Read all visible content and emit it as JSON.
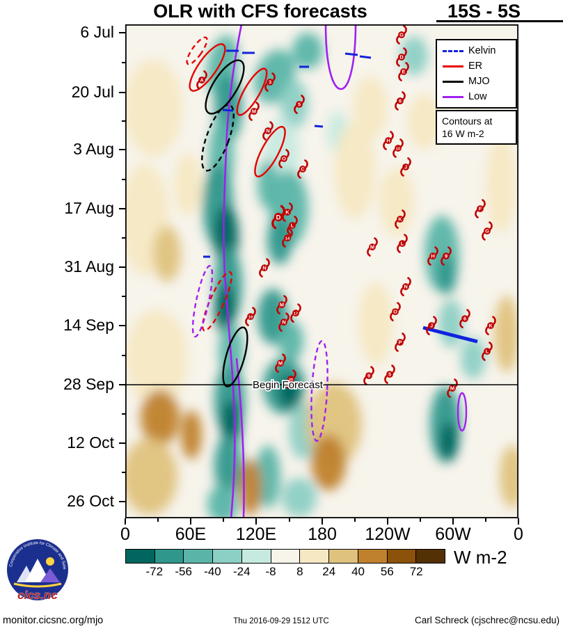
{
  "header": {
    "title": "OLR with CFS forecasts",
    "latitude_band": "15S - 5S"
  },
  "legend": {
    "items": [
      {
        "label": "Kelvin",
        "color": "#1122dd",
        "style": "dashed"
      },
      {
        "label": "ER",
        "color": "#e60000",
        "style": "solid"
      },
      {
        "label": "MJO",
        "color": "#000000",
        "style": "solid"
      },
      {
        "label": "Low",
        "color": "#a020f0",
        "style": "solid"
      }
    ],
    "note_line1": "Contours at",
    "note_line2": "16 W m-2"
  },
  "chart_data": {
    "type": "heatmap",
    "subtype": "hovmoller-time-longitude",
    "title": "OLR with CFS forecasts",
    "latitude_band": "15S - 5S",
    "field": "OLR anomalies (shaded), wave contours at 16 W m-2",
    "plot_bg": "#f7f4ec",
    "storm_color": "#c00000",
    "x_ticks": [
      [
        "0",
        0
      ],
      [
        "60E",
        94
      ],
      [
        "120E",
        188
      ],
      [
        "180",
        283
      ],
      [
        "120W",
        377
      ],
      [
        "60W",
        471
      ],
      [
        "0",
        565
      ]
    ],
    "y_ticks": [
      [
        "6 Jul",
        12
      ],
      [
        "20 Jul",
        98
      ],
      [
        "3 Aug",
        180
      ],
      [
        "17 Aug",
        265
      ],
      [
        "31 Aug",
        349
      ],
      [
        "14 Sep",
        433
      ],
      [
        "28 Sep",
        518
      ],
      [
        "12 Oct",
        602
      ],
      [
        "26 Oct",
        686
      ]
    ],
    "begin_forecast": {
      "label": "Begin Forecast",
      "y": 518
    },
    "colorbar": {
      "units": "W m-2",
      "tick_labels": [
        "-72",
        "-56",
        "-40",
        "-24",
        "-8",
        "8",
        "24",
        "40",
        "56",
        "72"
      ],
      "colors": [
        "#01665e",
        "#2f978c",
        "#5ab4a8",
        "#8ccfc4",
        "#c7eae0",
        "#f7f4ea",
        "#f6e8c3",
        "#dfc27d",
        "#bf812d",
        "#8c510a",
        "#543005"
      ]
    },
    "low_tracks": [
      "M167,0 C155,60 147,120 145,180 C142,250 140,300 143,360 C147,420 152,470 155,520 C158,580 159,630 152,710",
      "M160,480 C168,560 172,640 170,710",
      "M288,0 C288,60 298,93 310,93 C322,93 331,55 331,0"
    ],
    "wave_ellipses": [
      [
        118,
        62,
        13,
        40,
        35,
        "ER",
        0
      ],
      [
        182,
        97,
        11,
        38,
        30,
        "ER",
        0
      ],
      [
        208,
        183,
        12,
        40,
        28,
        "ER",
        0
      ],
      [
        103,
        38,
        7,
        23,
        35,
        "ER",
        1
      ],
      [
        132,
        398,
        10,
        46,
        24,
        "ER",
        1
      ],
      [
        143,
        90,
        17,
        44,
        32,
        "MJO",
        0
      ],
      [
        158,
        478,
        13,
        44,
        16,
        "MJO",
        0
      ],
      [
        133,
        163,
        16,
        50,
        20,
        "MJO",
        1
      ],
      [
        111,
        398,
        9,
        52,
        12,
        "Low",
        1
      ],
      [
        279,
        527,
        11,
        72,
        3,
        "Low",
        1
      ],
      [
        484,
        557,
        6,
        27,
        0,
        "Low",
        0
      ]
    ],
    "kelvin_segments": [
      [
        145,
        38,
        163,
        38,
        3
      ],
      [
        168,
        41,
        186,
        41,
        3
      ],
      [
        316,
        42,
        334,
        44,
        3
      ],
      [
        337,
        46,
        353,
        48,
        3
      ],
      [
        250,
        61,
        264,
        61,
        3
      ],
      [
        272,
        146,
        284,
        147,
        3
      ],
      [
        140,
        123,
        155,
        124,
        3
      ],
      [
        112,
        334,
        122,
        334,
        3
      ],
      [
        428,
        436,
        506,
        456,
        5
      ]
    ],
    "storms": [
      [
        "G",
        397,
        15
      ],
      [
        "D",
        397,
        47
      ],
      [
        "E",
        400,
        68
      ],
      [
        "A",
        110,
        80
      ],
      [
        "3",
        208,
        83
      ],
      [
        "5",
        250,
        115
      ],
      [
        "6",
        395,
        110
      ],
      [
        "M",
        185,
        125
      ],
      [
        "N",
        205,
        153
      ],
      [
        "H",
        378,
        167
      ],
      [
        "10",
        392,
        178
      ],
      [
        "O",
        228,
        193
      ],
      [
        "C",
        255,
        208
      ],
      [
        "J",
        403,
        205
      ],
      [
        "K",
        233,
        270
      ],
      [
        "D",
        220,
        277,
        1.25
      ],
      [
        "L",
        240,
        289
      ],
      [
        "14",
        233,
        307
      ],
      [
        "K",
        395,
        280
      ],
      [
        "F",
        510,
        265
      ],
      [
        "G",
        520,
        297
      ],
      [
        "M",
        355,
        320
      ],
      [
        "L",
        398,
        315
      ],
      [
        "H",
        442,
        333
      ],
      [
        "9",
        461,
        333
      ],
      [
        "N",
        200,
        350
      ],
      [
        "N",
        403,
        377
      ],
      [
        "M",
        225,
        403
      ],
      [
        "O",
        388,
        413
      ],
      [
        "19",
        180,
        420
      ],
      [
        "17",
        245,
        415
      ],
      [
        "N",
        228,
        428
      ],
      [
        "J",
        440,
        433
      ],
      [
        "6",
        488,
        423
      ],
      [
        "K",
        525,
        433
      ],
      [
        "P",
        395,
        457
      ],
      [
        "L",
        520,
        470
      ],
      [
        "M",
        223,
        487
      ],
      [
        "20",
        238,
        510
      ],
      [
        "9",
        350,
        505
      ],
      [
        "5",
        380,
        503
      ],
      [
        "M",
        470,
        523
      ]
    ],
    "shading_blobs": [
      [
        140,
        60,
        22,
        45,
        10,
        "#5ab4a8"
      ],
      [
        148,
        120,
        20,
        50,
        0,
        "#2f978c"
      ],
      [
        138,
        190,
        18,
        55,
        0,
        "#5ab4a8"
      ],
      [
        133,
        260,
        22,
        60,
        0,
        "#2f978c"
      ],
      [
        145,
        305,
        18,
        45,
        0,
        "#01665e"
      ],
      [
        148,
        375,
        20,
        55,
        0,
        "#2f978c"
      ],
      [
        143,
        410,
        15,
        35,
        0,
        "#01665e"
      ],
      [
        152,
        470,
        18,
        40,
        0,
        "#5ab4a8"
      ],
      [
        150,
        540,
        22,
        50,
        0,
        "#2f978c"
      ],
      [
        152,
        575,
        15,
        35,
        0,
        "#01665e"
      ],
      [
        148,
        635,
        20,
        45,
        0,
        "#2f978c"
      ],
      [
        140,
        690,
        22,
        28,
        0,
        "#5ab4a8"
      ],
      [
        215,
        75,
        28,
        40,
        20,
        "#5ab4a8"
      ],
      [
        243,
        115,
        20,
        35,
        0,
        "#8ccfc4"
      ],
      [
        225,
        185,
        25,
        50,
        0,
        "#c7eae0"
      ],
      [
        235,
        265,
        28,
        55,
        0,
        "#5ab4a8"
      ],
      [
        222,
        310,
        18,
        35,
        0,
        "#2f978c"
      ],
      [
        212,
        420,
        22,
        40,
        0,
        "#2f978c"
      ],
      [
        238,
        455,
        18,
        30,
        0,
        "#5ab4a8"
      ],
      [
        228,
        520,
        30,
        40,
        0,
        "#2f978c"
      ],
      [
        236,
        528,
        16,
        24,
        0,
        "#01665e"
      ],
      [
        255,
        585,
        20,
        40,
        0,
        "#8ccfc4"
      ],
      [
        205,
        650,
        18,
        45,
        0,
        "#5ab4a8"
      ],
      [
        250,
        680,
        25,
        28,
        0,
        "#8ccfc4"
      ],
      [
        455,
        330,
        25,
        55,
        0,
        "#5ab4a8"
      ],
      [
        462,
        360,
        14,
        28,
        0,
        "#2f978c"
      ],
      [
        468,
        430,
        18,
        35,
        0,
        "#8ccfc4"
      ],
      [
        460,
        575,
        22,
        55,
        0,
        "#2f978c"
      ],
      [
        465,
        600,
        13,
        28,
        0,
        "#01665e"
      ],
      [
        500,
        480,
        18,
        30,
        0,
        "#8ccfc4"
      ],
      [
        415,
        45,
        20,
        28,
        0,
        "#8ccfc4"
      ],
      [
        262,
        38,
        22,
        26,
        0,
        "#5ab4a8"
      ],
      [
        305,
        155,
        15,
        30,
        0,
        "#c7eae0"
      ],
      [
        205,
        230,
        15,
        35,
        0,
        "#5ab4a8"
      ],
      [
        40,
        120,
        42,
        70,
        0,
        "#f6e8c3"
      ],
      [
        28,
        280,
        35,
        80,
        0,
        "#f6e8c3"
      ],
      [
        60,
        330,
        20,
        40,
        0,
        "#dfc27d"
      ],
      [
        45,
        480,
        45,
        70,
        0,
        "#f6e8c3"
      ],
      [
        50,
        565,
        28,
        40,
        0,
        "#bf812d"
      ],
      [
        35,
        650,
        40,
        55,
        0,
        "#dfc27d"
      ],
      [
        90,
        230,
        20,
        45,
        0,
        "#f6e8c3"
      ],
      [
        95,
        590,
        15,
        35,
        0,
        "#bf812d"
      ],
      [
        330,
        210,
        30,
        70,
        0,
        "#f6e8c3"
      ],
      [
        352,
        120,
        25,
        45,
        0,
        "#f6e8c3"
      ],
      [
        390,
        255,
        25,
        50,
        0,
        "#f6e8c3"
      ],
      [
        300,
        575,
        40,
        60,
        0,
        "#dfc27d"
      ],
      [
        292,
        630,
        25,
        40,
        0,
        "#bf812d"
      ],
      [
        180,
        665,
        16,
        40,
        0,
        "#bf812d"
      ],
      [
        540,
        230,
        22,
        70,
        0,
        "#f6e8c3"
      ],
      [
        548,
        445,
        18,
        55,
        0,
        "#dfc27d"
      ],
      [
        430,
        140,
        25,
        40,
        0,
        "#f6e8c3"
      ],
      [
        490,
        85,
        30,
        35,
        0,
        "#f6e8c3"
      ],
      [
        556,
        650,
        18,
        45,
        0,
        "#dfc27d"
      ],
      [
        360,
        430,
        25,
        60,
        0,
        "#f6e8c3"
      ]
    ]
  },
  "footer": {
    "left": "monitor.cicsnc.org/mjo",
    "center": "Thu 2016-09-29 1512 UTC",
    "right": "Carl Schreck (cjschrec@ncsu.edu)"
  },
  "logo": {
    "name": "cics.nc",
    "ring_text": "Cooperative Institute for Climate and Satellites"
  }
}
